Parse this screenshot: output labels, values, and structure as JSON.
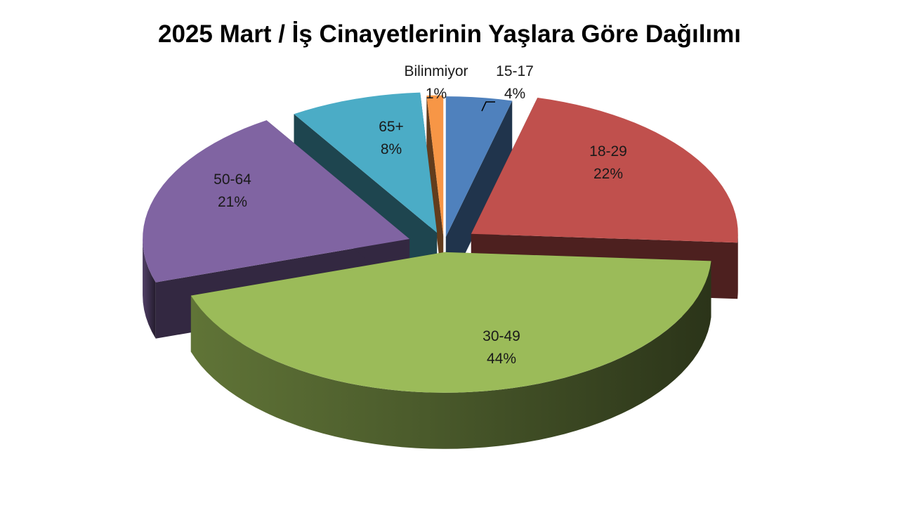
{
  "chart_data": {
    "type": "pie",
    "title": "2025 Mart / İş Cinayetlerinin Yaşlara Göre Dağılımı",
    "style": "3d-exploded",
    "slices": [
      {
        "label": "15-17",
        "value": 4,
        "display": "4%",
        "color": "#4F81BD"
      },
      {
        "label": "18-29",
        "value": 22,
        "display": "22%",
        "color": "#C0504D"
      },
      {
        "label": "30-49",
        "value": 44,
        "display": "44%",
        "color": "#9BBB59"
      },
      {
        "label": "50-64",
        "value": 21,
        "display": "21%",
        "color": "#8064A2"
      },
      {
        "label": "65+",
        "value": 8,
        "display": "8%",
        "color": "#4BACC6"
      },
      {
        "label": "Bilinmiyor",
        "value": 1,
        "display": "1%",
        "color": "#F79646"
      }
    ]
  }
}
